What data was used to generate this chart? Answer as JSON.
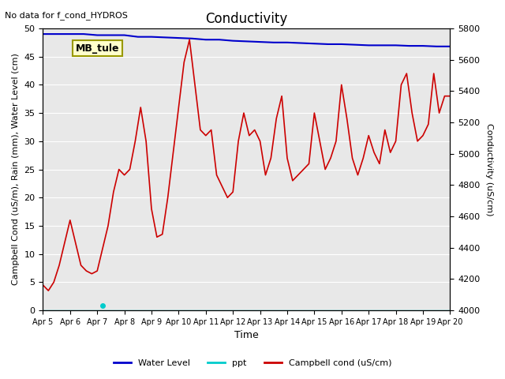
{
  "title": "Conductivity",
  "top_left_text": "No data for f_cond_HYDROS",
  "annotation_box": "MB_tule",
  "xlabel": "Time",
  "ylabel_left": "Campbell Cond (uS/m), Rain (mm), Water Level (cm)",
  "ylabel_right": "Conductivity (uS/cm)",
  "xlim": [
    0,
    15
  ],
  "ylim_left": [
    0,
    50
  ],
  "ylim_right": [
    4000,
    5800
  ],
  "x_ticks_labels": [
    "Apr 5",
    "Apr 6",
    "Apr 7",
    "Apr 8",
    "Apr 9",
    "Apr 10",
    "Apr 11",
    "Apr 12",
    "Apr 13",
    "Apr 14",
    "Apr 15",
    "Apr 16",
    "Apr 17",
    "Apr 18",
    "Apr 19",
    "Apr 20"
  ],
  "background_color": "#e8e8e8",
  "legend_entries": [
    "Water Level",
    "ppt",
    "Campbell cond (uS/cm)"
  ],
  "legend_colors": [
    "#0000cc",
    "#00cccc",
    "#cc0000"
  ],
  "water_level_x": [
    0,
    0.5,
    1,
    1.5,
    2,
    2.5,
    3,
    3.5,
    4,
    4.5,
    5,
    5.5,
    6,
    6.5,
    7,
    7.5,
    8,
    8.5,
    9,
    9.5,
    10,
    10.5,
    11,
    11.5,
    12,
    12.5,
    13,
    13.5,
    14,
    14.5,
    15
  ],
  "water_level_y": [
    49,
    49,
    49,
    49,
    48.8,
    48.8,
    48.8,
    48.5,
    48.5,
    48.4,
    48.3,
    48.2,
    48.0,
    48.0,
    47.8,
    47.7,
    47.6,
    47.5,
    47.5,
    47.4,
    47.3,
    47.2,
    47.2,
    47.1,
    47.0,
    47.0,
    47.0,
    46.9,
    46.9,
    46.8,
    46.8
  ],
  "ppt_x": [
    2.2
  ],
  "ppt_y": [
    0.8
  ],
  "campbell_x": [
    0,
    0.2,
    0.4,
    0.6,
    0.8,
    1.0,
    1.2,
    1.4,
    1.6,
    1.8,
    2.0,
    2.2,
    2.4,
    2.6,
    2.8,
    3.0,
    3.2,
    3.4,
    3.6,
    3.8,
    4.0,
    4.2,
    4.4,
    4.6,
    4.8,
    5.0,
    5.2,
    5.4,
    5.6,
    5.8,
    6.0,
    6.2,
    6.4,
    6.6,
    6.8,
    7.0,
    7.2,
    7.4,
    7.6,
    7.8,
    8.0,
    8.2,
    8.4,
    8.6,
    8.8,
    9.0,
    9.2,
    9.4,
    9.6,
    9.8,
    10.0,
    10.2,
    10.4,
    10.6,
    10.8,
    11.0,
    11.2,
    11.4,
    11.6,
    11.8,
    12.0,
    12.2,
    12.4,
    12.6,
    12.8,
    13.0,
    13.2,
    13.4,
    13.6,
    13.8,
    14.0,
    14.2,
    14.4,
    14.6,
    14.8,
    15.0
  ],
  "campbell_y": [
    4.5,
    3.5,
    5,
    8,
    12,
    16,
    12,
    8,
    7,
    6.5,
    7,
    11,
    15,
    21,
    25,
    24,
    25,
    30,
    36,
    30,
    18,
    13,
    13.5,
    20,
    28,
    36,
    44,
    48,
    40,
    32,
    31,
    32,
    24,
    22,
    20,
    21,
    30,
    35,
    31,
    32,
    30,
    24,
    27,
    34,
    38,
    27,
    23,
    24,
    25,
    26,
    35,
    30,
    25,
    27,
    30,
    40,
    34,
    27,
    24,
    27,
    31,
    28,
    26,
    32,
    28,
    30,
    40,
    42,
    35,
    30,
    31,
    33,
    42,
    35,
    38,
    38
  ]
}
